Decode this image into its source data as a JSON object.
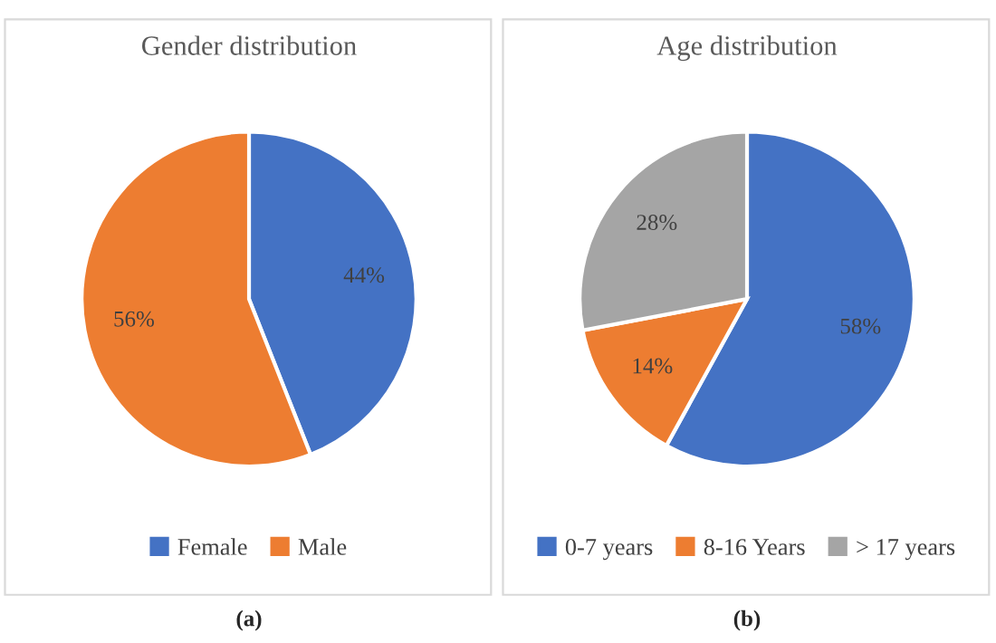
{
  "chart_data": [
    {
      "type": "pie",
      "title": "Gender distribution",
      "categories": [
        "Female",
        "Male"
      ],
      "values": [
        44,
        56
      ],
      "colors": [
        "#4472c4",
        "#ed7d31"
      ],
      "value_labels": [
        "44%",
        "56%"
      ],
      "legend": "bottom",
      "annotations": [
        "(a)"
      ]
    },
    {
      "type": "pie",
      "title": "Age distribution",
      "categories": [
        "0-7 years",
        "8-16 Years",
        "> 17 years"
      ],
      "values": [
        58,
        14,
        28
      ],
      "colors": [
        "#4472c4",
        "#ed7d31",
        "#a5a5a5"
      ],
      "value_labels": [
        "58%",
        "14%",
        "28%"
      ],
      "legend": "bottom",
      "annotations": [
        "(b)"
      ]
    }
  ]
}
